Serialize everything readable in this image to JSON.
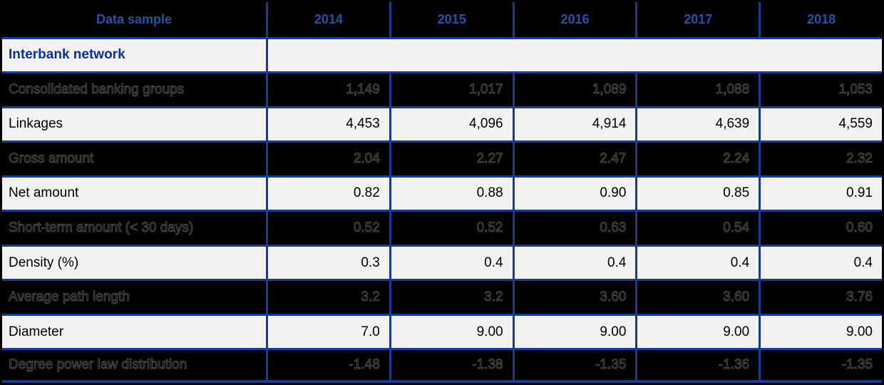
{
  "table": {
    "header": {
      "label": "Data sample",
      "years": [
        "2014",
        "2015",
        "2016",
        "2017",
        "2018"
      ]
    },
    "section_title": "Interbank network",
    "rows": [
      {
        "label": "Consolidated banking groups",
        "values": [
          "1,149",
          "1,017",
          "1,089",
          "1,088",
          "1,053"
        ]
      },
      {
        "label": "Linkages",
        "values": [
          "4,453",
          "4,096",
          "4,914",
          "4,639",
          "4,559"
        ]
      },
      {
        "label": "Gross amount",
        "values": [
          "2.04",
          "2.27",
          "2.47",
          "2.24",
          "2.32"
        ]
      },
      {
        "label": "Net amount",
        "values": [
          "0.82",
          "0.88",
          "0.90",
          "0.85",
          "0.91"
        ]
      },
      {
        "label": "Short-term amount (< 30 days)",
        "values": [
          "0.52",
          "0.52",
          "0.63",
          "0.54",
          "0.60"
        ]
      },
      {
        "label": "Density (%)",
        "values": [
          "0.3",
          "0.4",
          "0.4",
          "0.4",
          "0.4"
        ]
      },
      {
        "label": "Average path length",
        "values": [
          "3.2",
          "3.2",
          "3.60",
          "3.60",
          "3.76"
        ]
      },
      {
        "label": "Diameter",
        "values": [
          "7.0",
          "9.00",
          "9.00",
          "9.00",
          "9.00"
        ]
      },
      {
        "label": "Degree power law distribution",
        "values": [
          "-1.48",
          "-1.38",
          "-1.35",
          "-1.36",
          "-1.35"
        ]
      }
    ]
  },
  "colors": {
    "header_bg": "#000000",
    "header_text": "#2653A8",
    "border_blue": "#1A3A96",
    "section_text": "#0C2FA0",
    "light_row_bg": "#F2F2F2",
    "dark_row_bg": "#000000",
    "light_row_text": "#000000",
    "dark_row_text_outline": "#4A4A4A"
  },
  "chart_data": {
    "type": "table",
    "title": "Data sample",
    "section": "Interbank network",
    "categories": [
      2014,
      2015,
      2016,
      2017,
      2018
    ],
    "series": [
      {
        "name": "Consolidated banking groups",
        "values": [
          1149,
          1017,
          1089,
          1088,
          1053
        ]
      },
      {
        "name": "Linkages",
        "values": [
          4453,
          4096,
          4914,
          4639,
          4559
        ]
      },
      {
        "name": "Gross amount",
        "values": [
          2.04,
          2.27,
          2.47,
          2.24,
          2.32
        ]
      },
      {
        "name": "Net amount",
        "values": [
          0.82,
          0.88,
          0.9,
          0.85,
          0.91
        ]
      },
      {
        "name": "Short-term amount (< 30 days)",
        "values": [
          0.52,
          0.52,
          0.63,
          0.54,
          0.6
        ]
      },
      {
        "name": "Density (%)",
        "values": [
          0.3,
          0.4,
          0.4,
          0.4,
          0.4
        ]
      },
      {
        "name": "Average path length",
        "values": [
          3.2,
          3.2,
          3.6,
          3.6,
          3.76
        ]
      },
      {
        "name": "Diameter",
        "values": [
          7.0,
          9.0,
          9.0,
          9.0,
          9.0
        ]
      },
      {
        "name": "Degree power law distribution",
        "values": [
          -1.48,
          -1.38,
          -1.35,
          -1.36,
          -1.35
        ]
      }
    ]
  }
}
